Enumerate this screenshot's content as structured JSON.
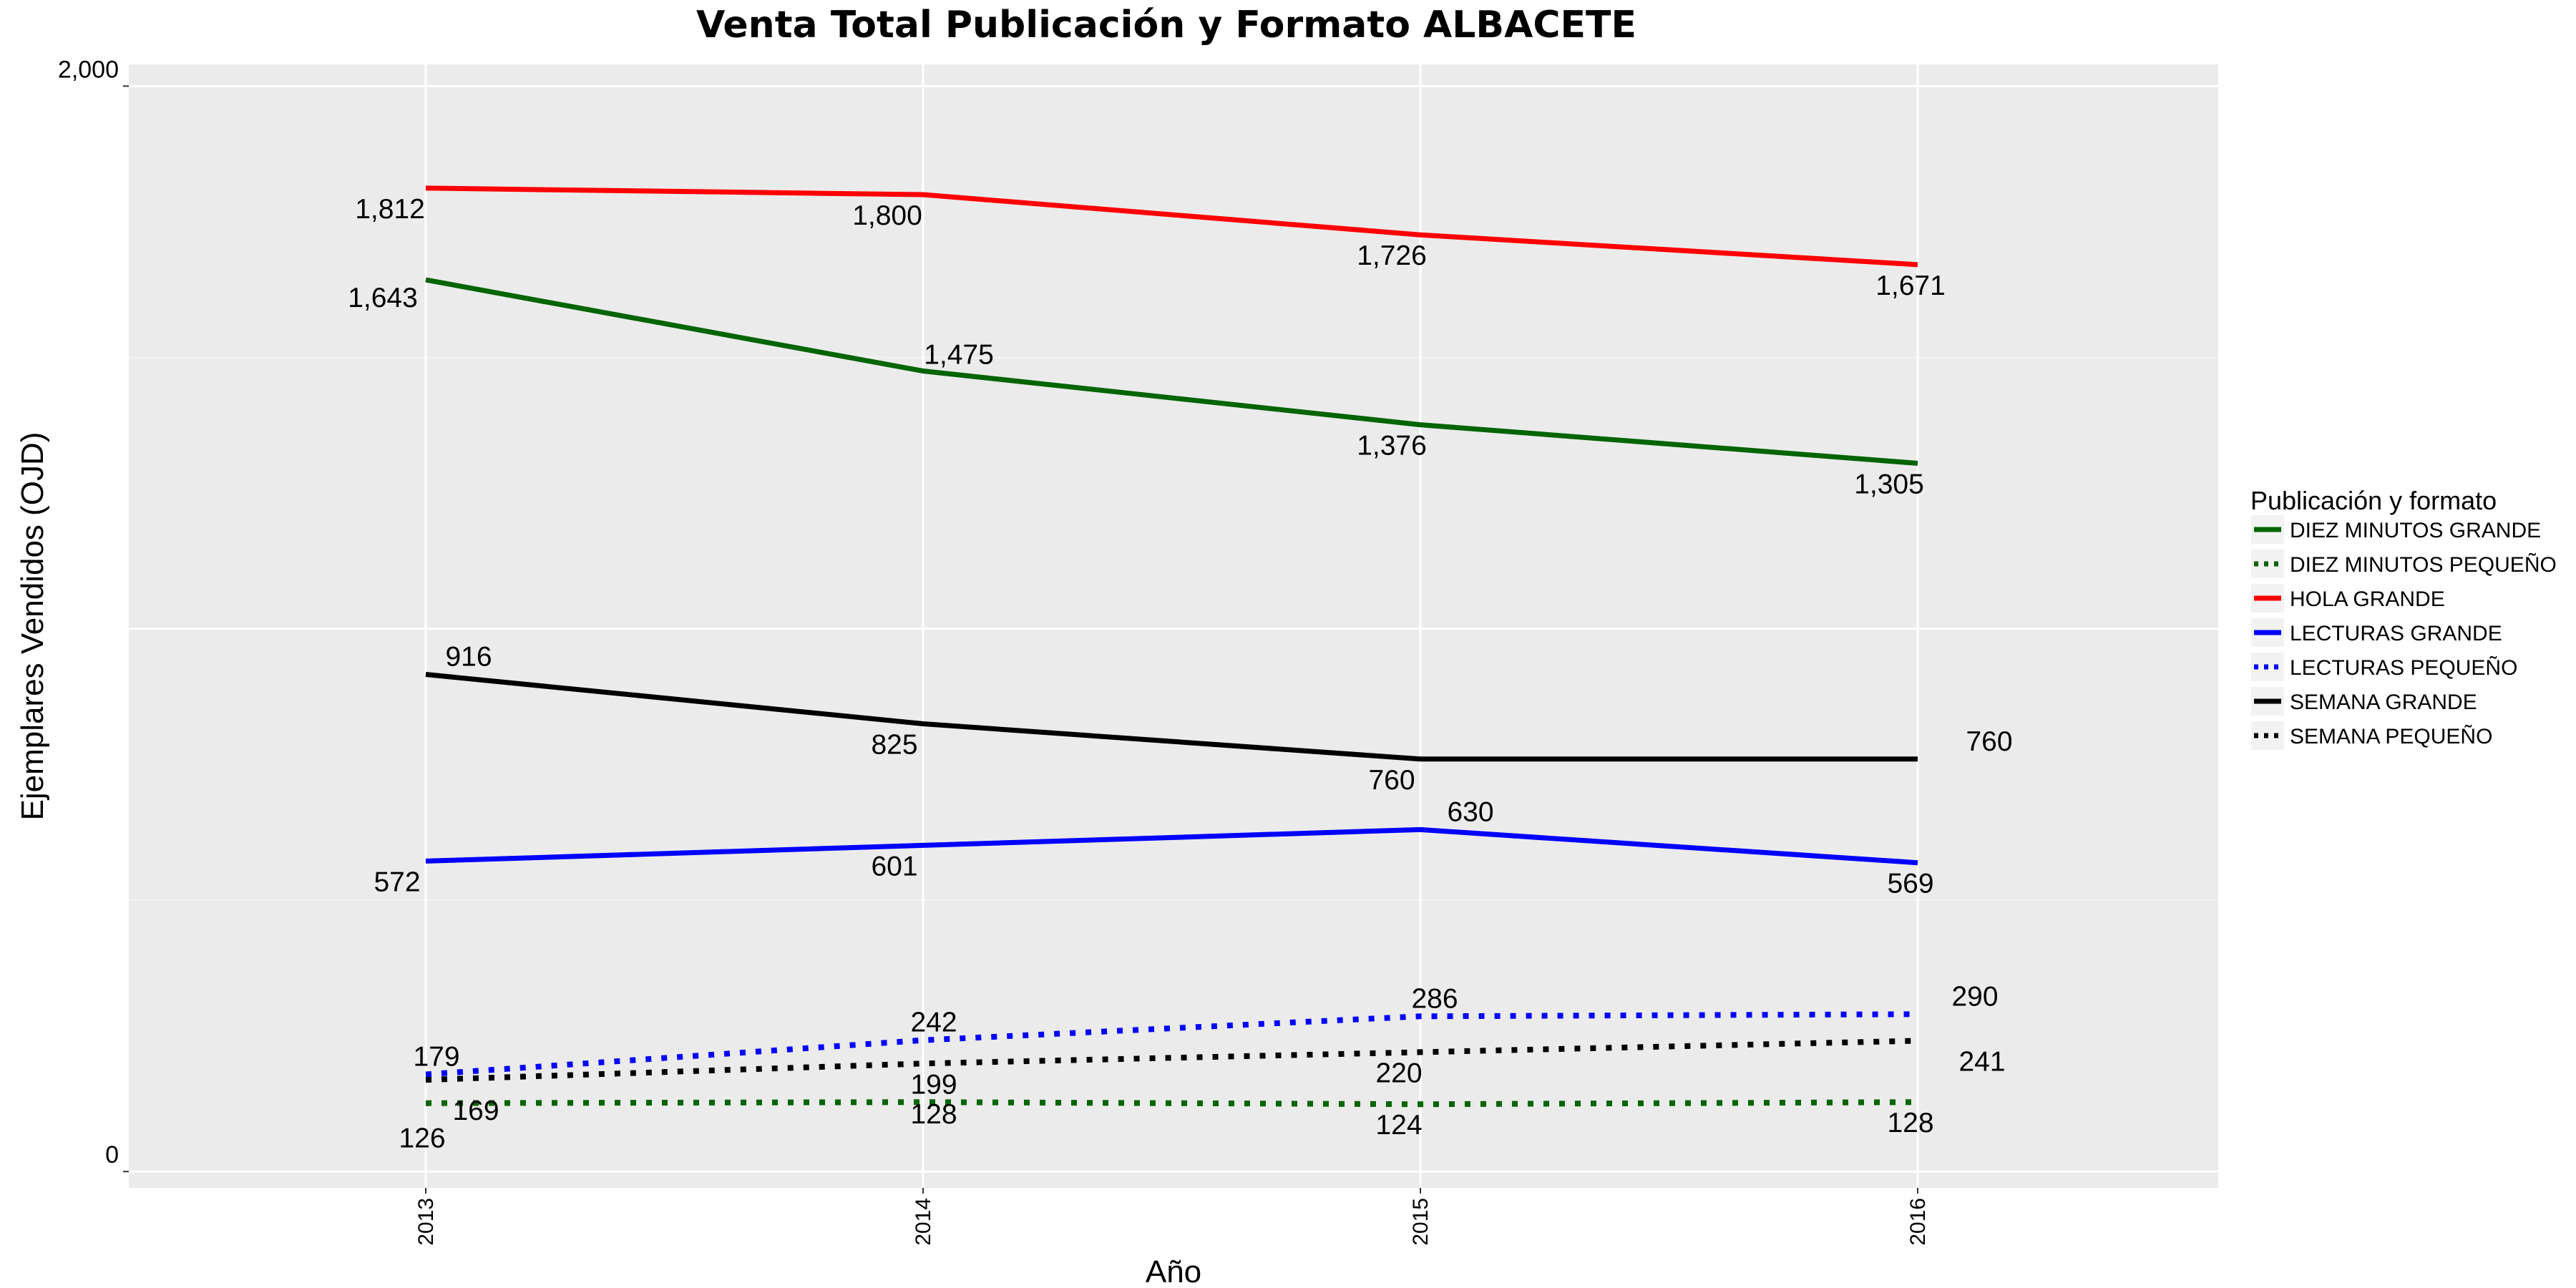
{
  "chart_data": {
    "type": "line",
    "title": "Venta Total Publicación y Formato  ALBACETE",
    "xlabel": "Año",
    "ylabel": "Ejemplares Vendidos (OJD)",
    "x": [
      "2013",
      "2014",
      "2015",
      "2016"
    ],
    "ylim": [
      -30,
      2040
    ],
    "yticks": [
      {
        "value": 0,
        "label": "0"
      },
      {
        "value": 2000,
        "label": "2,000"
      }
    ],
    "grid": true,
    "background": "#ebebeb",
    "legend": {
      "title": "Publicación y formato",
      "position": "right"
    },
    "series": [
      {
        "name": "DIEZ MINUTOS GRANDE",
        "color": "#006400",
        "dash": "solid",
        "values": [
          1643,
          1475,
          1376,
          1305
        ],
        "labels": [
          "1,643",
          "1,475",
          "1,376",
          "1,305"
        ]
      },
      {
        "name": "DIEZ MINUTOS PEQUEÑO",
        "color": "#006400",
        "dash": "dotted",
        "values": [
          126,
          128,
          124,
          128
        ],
        "labels": [
          "126",
          "128",
          "124",
          "128"
        ]
      },
      {
        "name": "HOLA GRANDE",
        "color": "#ff0000",
        "dash": "solid",
        "values": [
          1812,
          1800,
          1726,
          1671
        ],
        "labels": [
          "1,812",
          "1,800",
          "1,726",
          "1,671"
        ]
      },
      {
        "name": "LECTURAS GRANDE",
        "color": "#0000ff",
        "dash": "solid",
        "values": [
          572,
          601,
          630,
          569
        ],
        "labels": [
          "572",
          "601",
          "630",
          "569"
        ]
      },
      {
        "name": "LECTURAS PEQUEÑO",
        "color": "#0000ff",
        "dash": "dotted",
        "values": [
          179,
          242,
          286,
          290
        ],
        "labels": [
          "179",
          "242",
          "286",
          "290"
        ]
      },
      {
        "name": "SEMANA GRANDE",
        "color": "#000000",
        "dash": "solid",
        "values": [
          916,
          825,
          760,
          760
        ],
        "labels": [
          "916",
          "825",
          "760",
          "760"
        ]
      },
      {
        "name": "SEMANA PEQUEÑO",
        "color": "#000000",
        "dash": "dotted",
        "values": [
          169,
          199,
          220,
          241
        ],
        "labels": [
          "169",
          "199",
          "220",
          "241"
        ]
      }
    ]
  }
}
